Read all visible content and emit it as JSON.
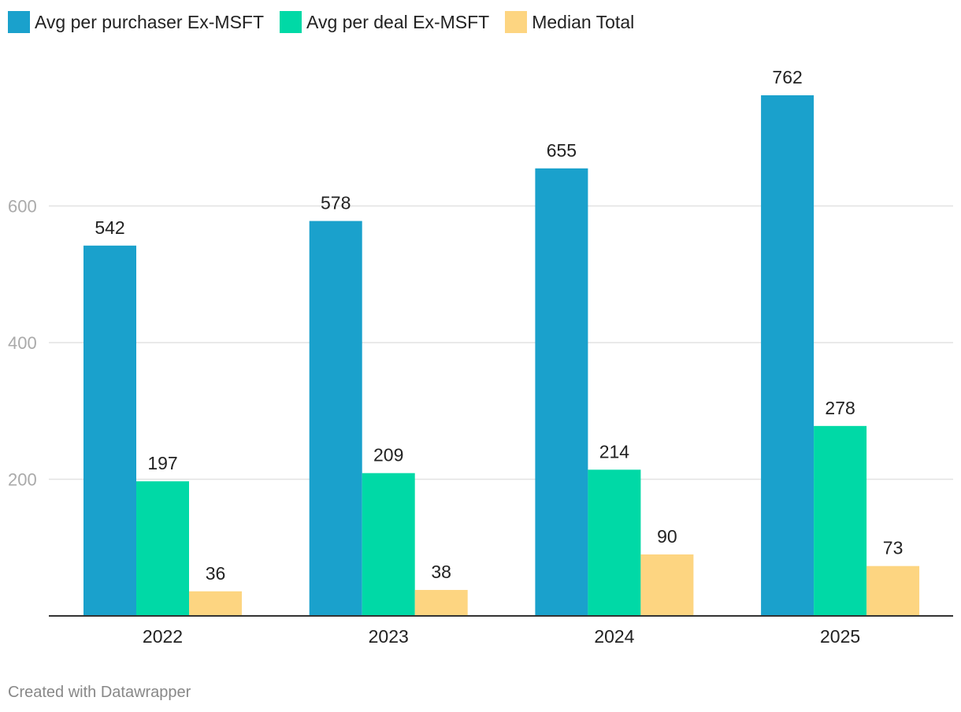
{
  "chart_data": {
    "type": "bar",
    "categories": [
      "2022",
      "2023",
      "2024",
      "2025"
    ],
    "series": [
      {
        "name": "Avg per purchaser Ex-MSFT",
        "color": "#1aa1cc",
        "values": [
          542,
          578,
          655,
          762
        ]
      },
      {
        "name": "Avg per deal Ex-MSFT",
        "color": "#00d9a6",
        "values": [
          197,
          209,
          214,
          278
        ]
      },
      {
        "name": "Median Total",
        "color": "#fdd581",
        "values": [
          36,
          38,
          90,
          73
        ]
      }
    ],
    "y_ticks": [
      200,
      400,
      600
    ],
    "ylim": [
      0,
      800
    ],
    "grid": true,
    "legend": "top-left",
    "title": "",
    "xlabel": "",
    "ylabel": ""
  },
  "footer": {
    "credit": "Created with Datawrapper"
  }
}
